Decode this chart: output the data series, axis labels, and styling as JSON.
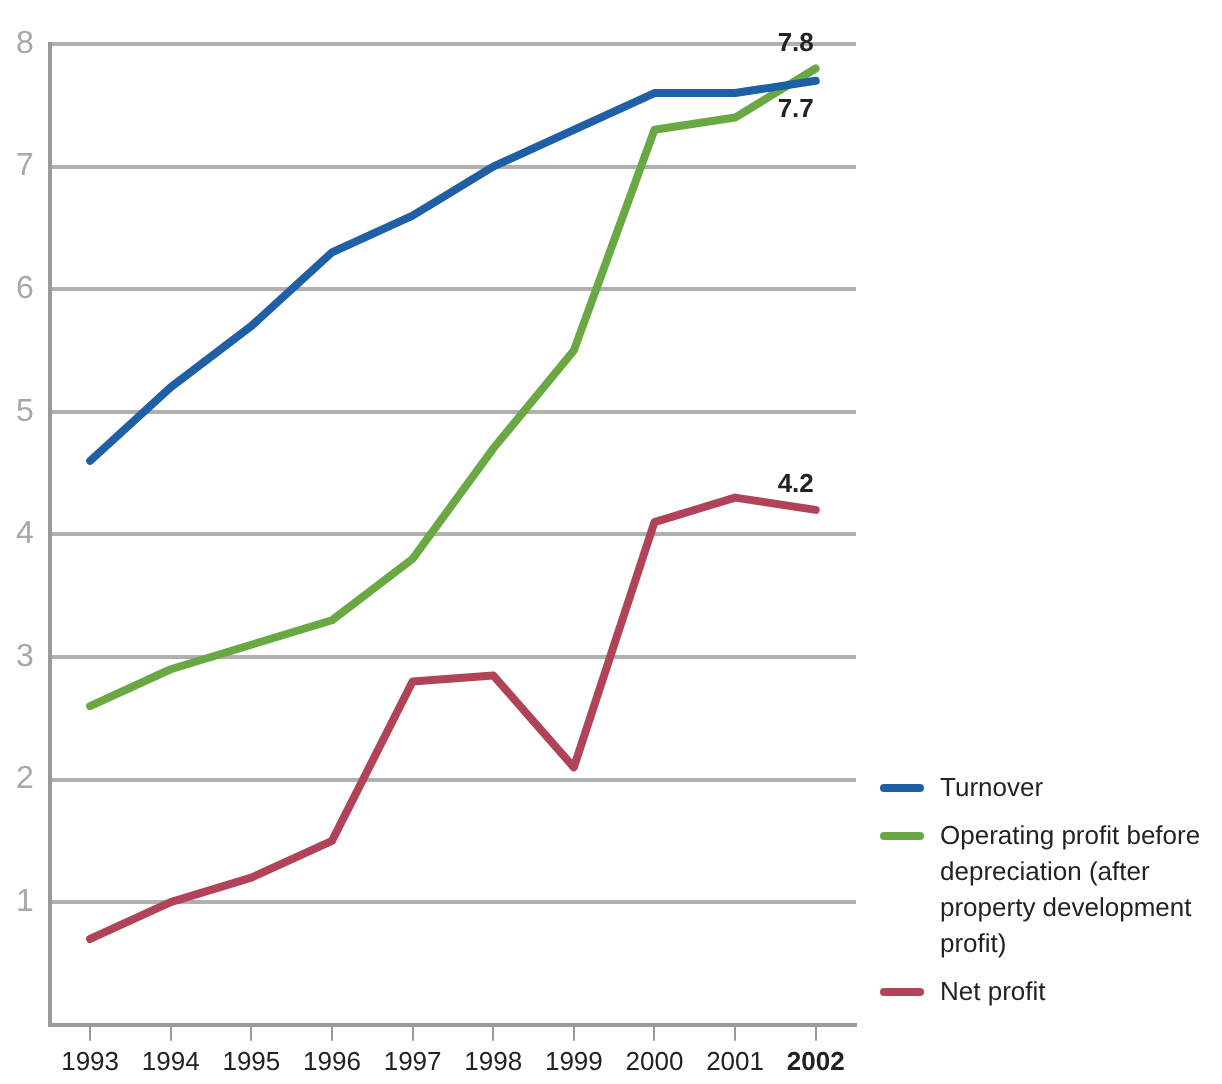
{
  "chart_data": {
    "type": "line",
    "categories": [
      "1993",
      "1994",
      "1995",
      "1996",
      "1997",
      "1998",
      "1999",
      "2000",
      "2001",
      "2002"
    ],
    "series": [
      {
        "name": "Turnover",
        "color": "#1f5fa6",
        "values": [
          4.6,
          5.2,
          5.7,
          6.3,
          6.6,
          7.0,
          7.3,
          7.6,
          7.6,
          7.7
        ],
        "value_labels": [
          null,
          null,
          null,
          null,
          null,
          null,
          null,
          null,
          null,
          "7.7"
        ]
      },
      {
        "name": "Operating profit before depreciation (after property development profit)",
        "color": "#6aa843",
        "values": [
          2.6,
          2.9,
          3.1,
          3.3,
          3.8,
          4.7,
          5.5,
          7.3,
          7.4,
          7.8
        ],
        "value_labels": [
          null,
          null,
          null,
          null,
          null,
          null,
          null,
          null,
          null,
          "7.8"
        ]
      },
      {
        "name": "Net profit",
        "color": "#b04358",
        "values": [
          0.7,
          1.0,
          1.2,
          1.5,
          2.8,
          2.85,
          2.1,
          4.1,
          4.3,
          4.2
        ],
        "value_labels": [
          null,
          null,
          null,
          null,
          null,
          null,
          null,
          null,
          null,
          "4.2"
        ]
      }
    ],
    "ylim": [
      0,
      8
    ],
    "yticks": [
      1,
      2,
      3,
      4,
      5,
      6,
      7,
      8
    ],
    "grid": "y",
    "legend": "right",
    "marker": "none",
    "line_style": "solid"
  }
}
